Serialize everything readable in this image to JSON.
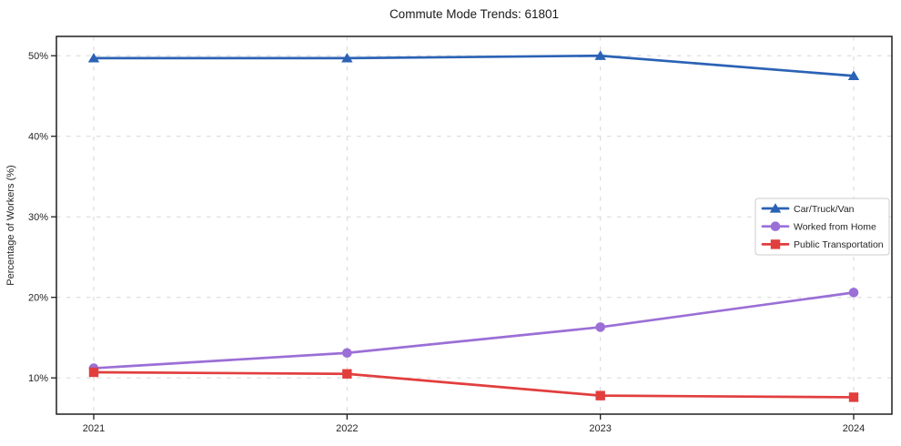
{
  "chart_data": {
    "type": "line",
    "title": "Commute Mode Trends: 61801",
    "xlabel": "",
    "ylabel": "Percentage of Workers (%)",
    "x": [
      2021,
      2022,
      2023,
      2024
    ],
    "xtick_labels": [
      "2021",
      "2022",
      "2023",
      "2024"
    ],
    "yticks": [
      10,
      20,
      30,
      40,
      50
    ],
    "ytick_labels": [
      "10%",
      "20%",
      "30%",
      "40%",
      "50%"
    ],
    "ylim": [
      5.5,
      52.4
    ],
    "grid": true,
    "grid_style": "dashed",
    "legend_position": "right-center",
    "series": [
      {
        "name": "Car/Truck/Van",
        "color": "#2b62b5",
        "marker": "triangle",
        "values": [
          49.7,
          49.7,
          50.0,
          47.5
        ]
      },
      {
        "name": "Worked from Home",
        "color": "#9b6fd6",
        "marker": "circle",
        "values": [
          11.2,
          13.1,
          16.3,
          20.6
        ]
      },
      {
        "name": "Public Transportation",
        "color": "#e23e3e",
        "marker": "square",
        "values": [
          10.7,
          10.5,
          7.8,
          7.6
        ]
      }
    ],
    "colors": {
      "grid": "#d6d6d6",
      "frame": "#1f1f1f",
      "background": "#ffffff",
      "legend_border": "#cccccc"
    }
  }
}
